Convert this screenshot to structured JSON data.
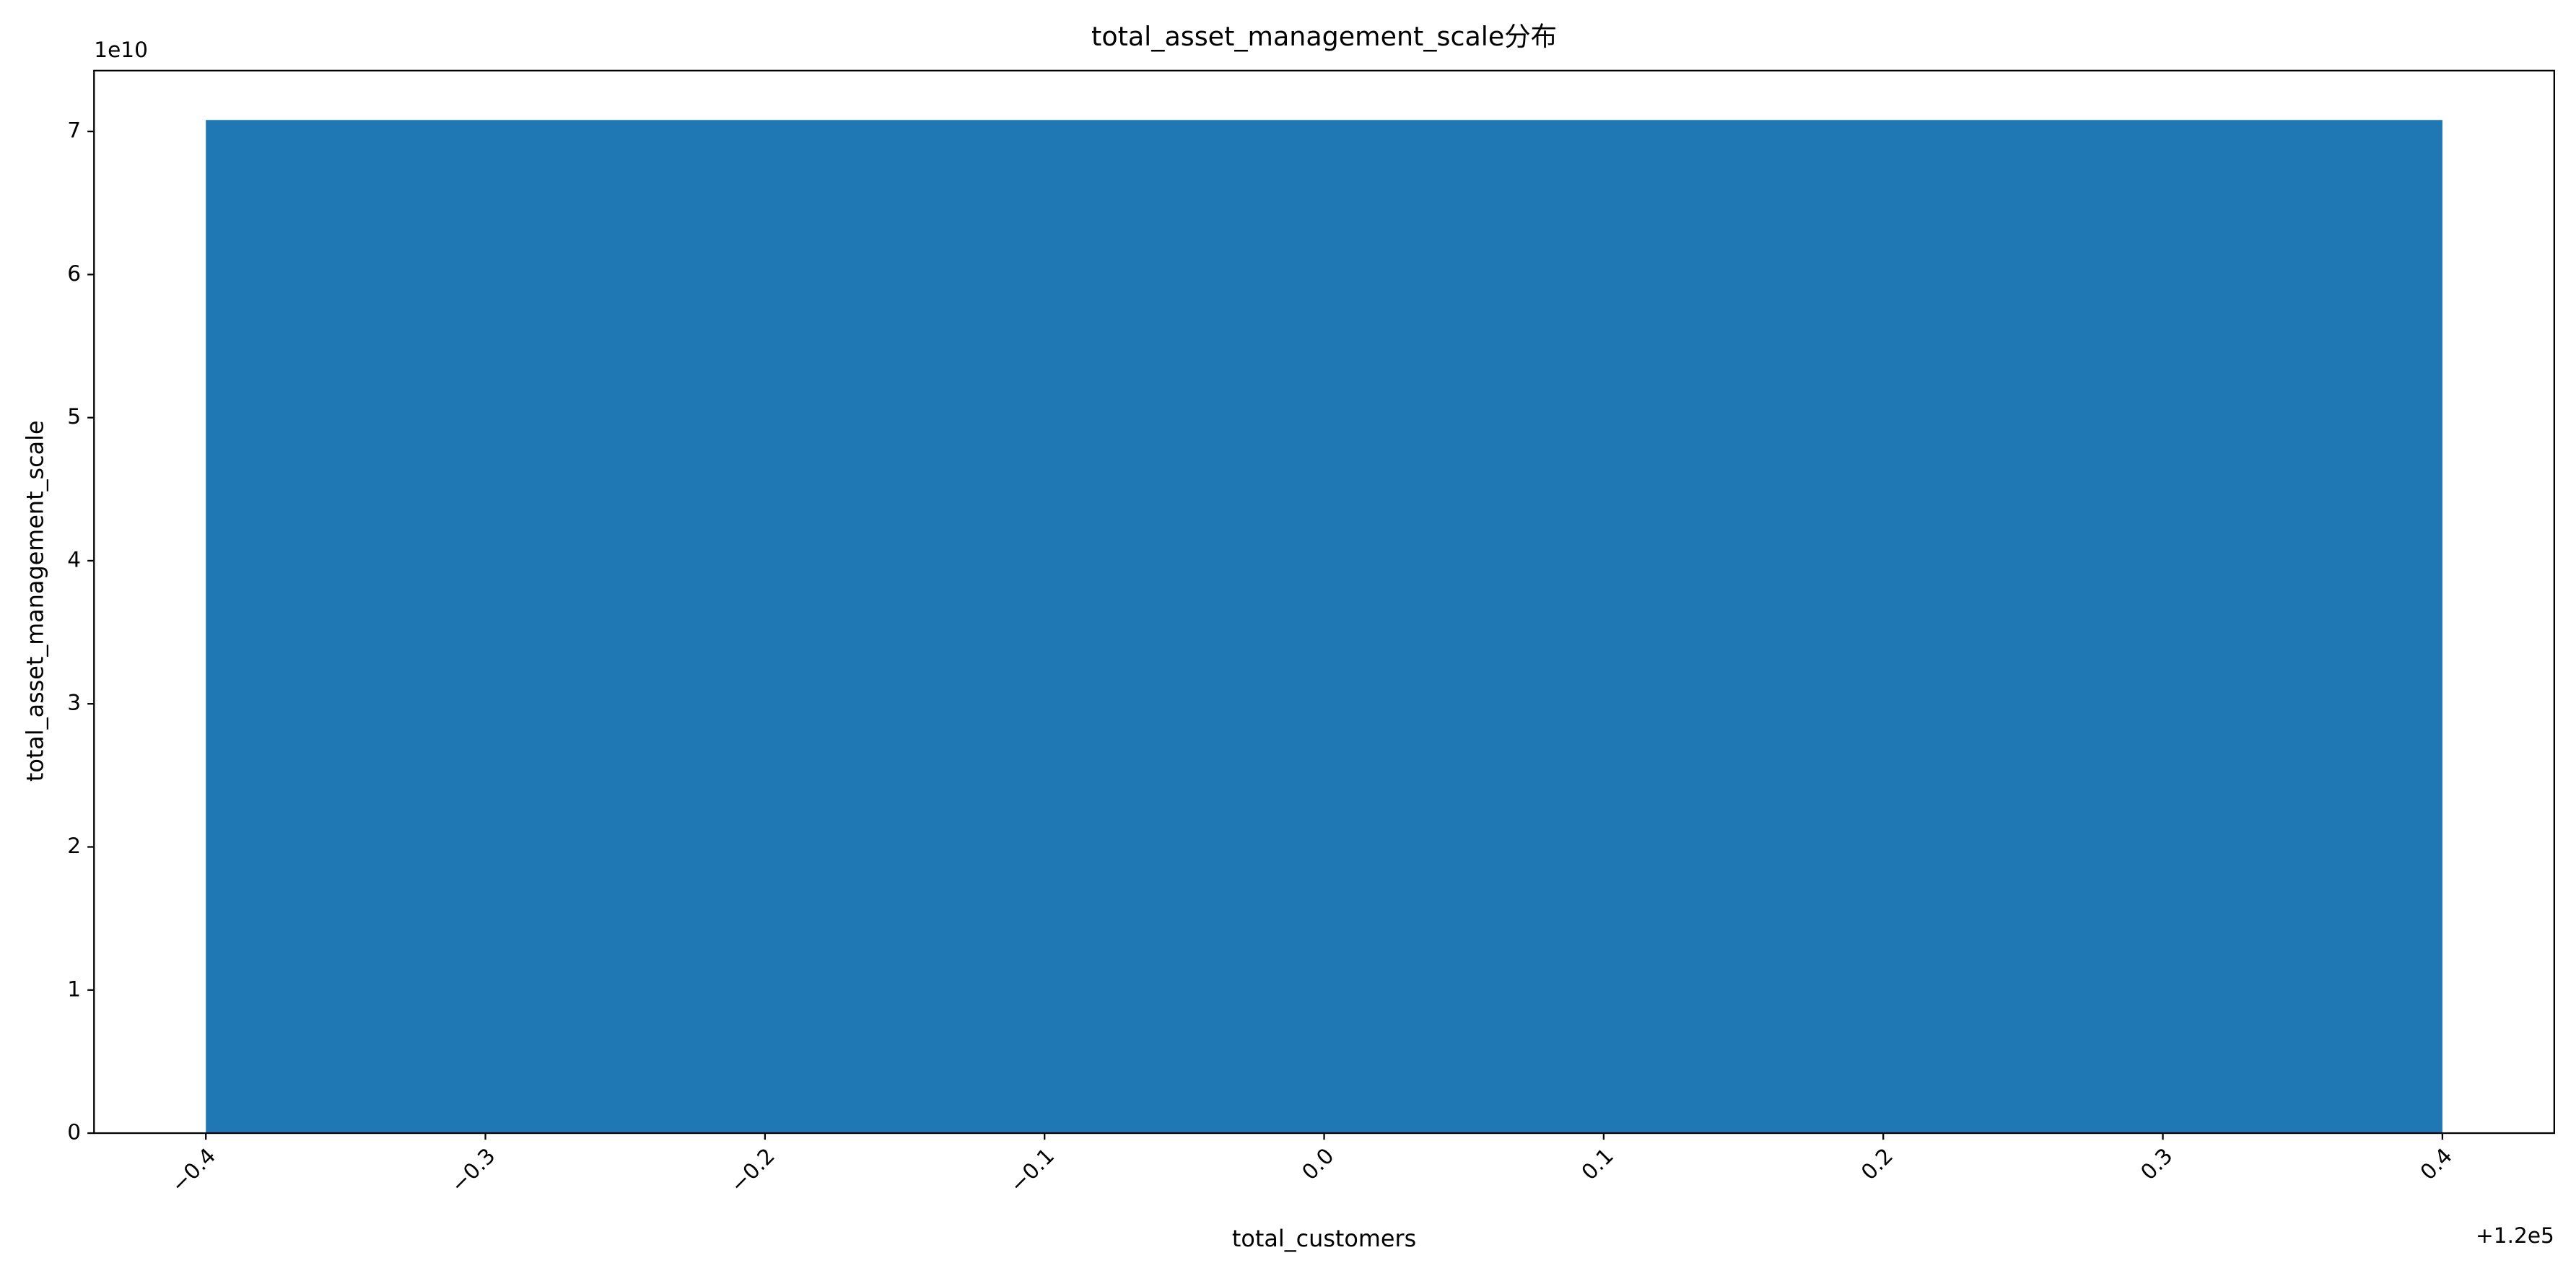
{
  "chart_data": {
    "type": "bar",
    "title": "total_asset_management_scale分布",
    "x_label": "total_customers",
    "y_label": "total_asset_management_scale",
    "x_offset_label": "+1.2e5",
    "y_offset_label": "1e10",
    "x": [
      120000
    ],
    "values": [
      70800000000
    ],
    "bar_width": 0.8,
    "color": "#1f77b4",
    "xlim": [
      119999.56,
      120000.44
    ],
    "xticks": [
      {
        "value": 119999.6,
        "label": "−0.4"
      },
      {
        "value": 119999.7,
        "label": "−0.3"
      },
      {
        "value": 119999.8,
        "label": "−0.2"
      },
      {
        "value": 119999.9,
        "label": "−0.1"
      },
      {
        "value": 120000,
        "label": "0.0"
      },
      {
        "value": 120000.1,
        "label": "0.1"
      },
      {
        "value": 120000.2,
        "label": "0.2"
      },
      {
        "value": 120000.3,
        "label": "0.3"
      },
      {
        "value": 120000.4,
        "label": "0.4"
      }
    ],
    "ylim": [
      0,
      74250000000
    ],
    "yticks": [
      0,
      {
        "value": 10000000000,
        "label": "1"
      },
      {
        "value": 20000000000,
        "label": "2"
      },
      {
        "value": 30000000000,
        "label": "3"
      },
      {
        "value": 40000000000,
        "label": "4"
      },
      {
        "value": 50000000000,
        "label": "5"
      },
      {
        "value": 60000000000,
        "label": "6"
      },
      {
        "value": 70000000000,
        "label": "7"
      }
    ],
    "grid": false
  }
}
